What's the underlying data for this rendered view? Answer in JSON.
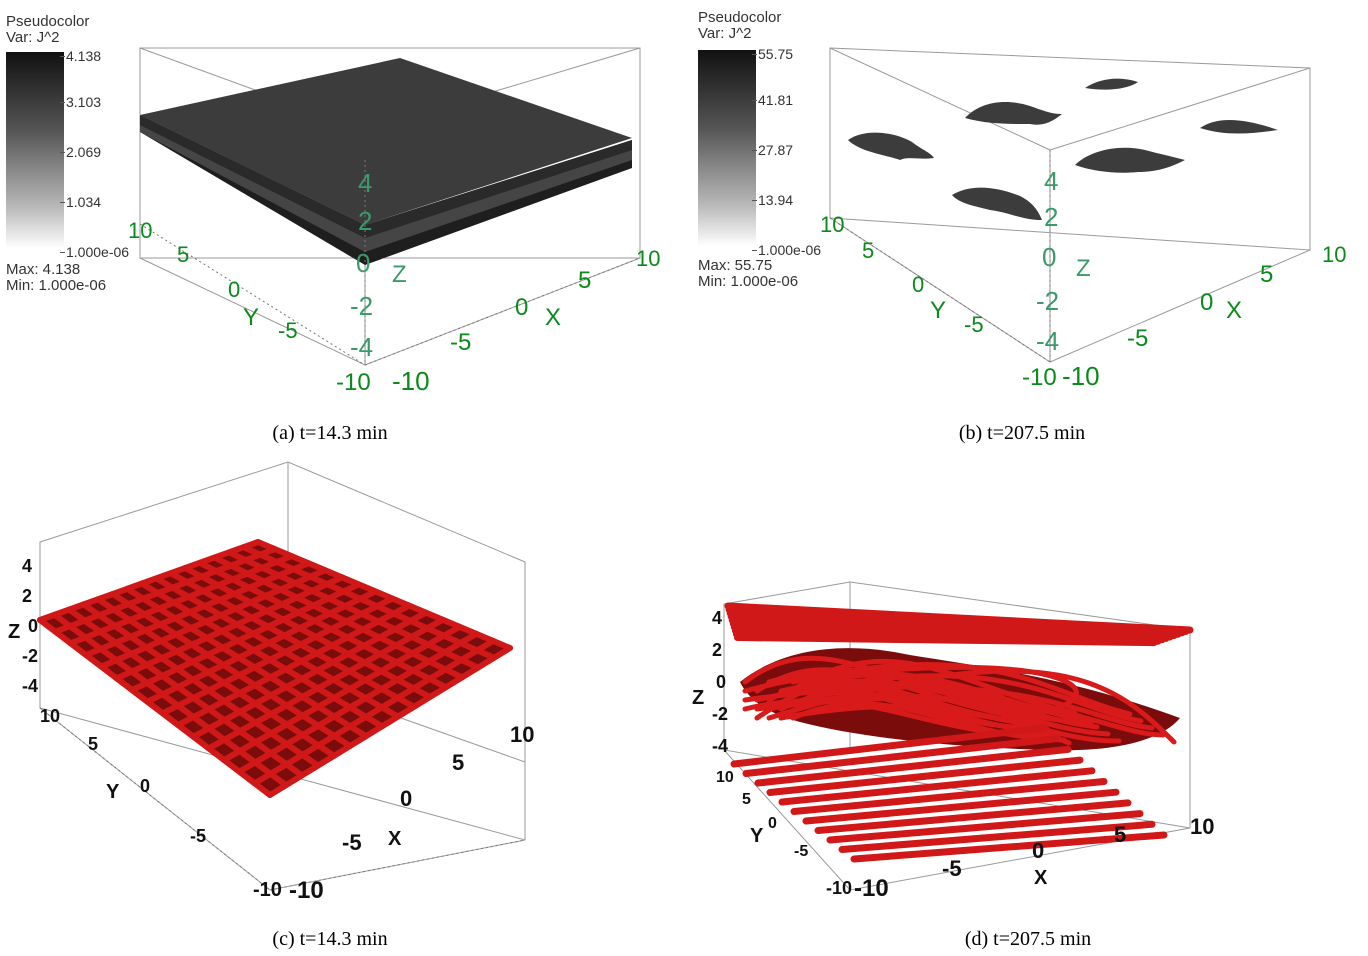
{
  "panels": [
    {
      "caption": "(a) t=14.3 min",
      "legend": {
        "title1": "Pseudocolor",
        "title2": "Var: J^2",
        "ticks": [
          "4.138",
          "3.103",
          "2.069",
          "1.034",
          "1.000e-06"
        ],
        "max_label": "Max:  4.138",
        "min_label": "Min:  1.000e-06"
      },
      "axes": {
        "x_label": "X",
        "y_label": "Y",
        "z_label": "Z",
        "x_ticks": [
          "-10",
          "-5",
          "0",
          "5",
          "10"
        ],
        "y_ticks": [
          "10",
          "5",
          "0",
          "-5",
          "-10"
        ],
        "z_ticks": [
          "4",
          "2",
          "0",
          "-2",
          "-4"
        ]
      }
    },
    {
      "caption": "(b) t=207.5 min",
      "legend": {
        "title1": "Pseudocolor",
        "title2": "Var: J^2",
        "ticks": [
          "55.75",
          "41.81",
          "27.87",
          "13.94",
          "1.000e-06"
        ],
        "max_label": "Max:  55.75",
        "min_label": "Min:  1.000e-06"
      },
      "axes": {
        "x_label": "X",
        "y_label": "Y",
        "z_label": "Z",
        "x_ticks": [
          "-10",
          "-5",
          "0",
          "5",
          "10"
        ],
        "y_ticks": [
          "10",
          "5",
          "0",
          "-5",
          "-10"
        ],
        "z_ticks": [
          "4",
          "2",
          "0",
          "-2",
          "-4"
        ]
      }
    },
    {
      "caption": "(c) t=14.3 min",
      "axes": {
        "x_label": "X",
        "y_label": "Y",
        "z_label": "Z",
        "x_ticks": [
          "-10",
          "-5",
          "0",
          "5",
          "10"
        ],
        "y_ticks": [
          "10",
          "5",
          "0",
          "-5",
          "-10"
        ],
        "z_ticks": [
          "4",
          "2",
          "0",
          "-2",
          "-4"
        ]
      }
    },
    {
      "caption": "(d) t=207.5 min",
      "axes": {
        "x_label": "X",
        "y_label": "Y",
        "z_label": "Z",
        "x_ticks": [
          "-10",
          "-5",
          "0",
          "5",
          "10"
        ],
        "y_ticks": [
          "10",
          "5",
          "0",
          "-5",
          "-10"
        ],
        "z_ticks": [
          "4",
          "2",
          "0",
          "-2",
          "-4"
        ]
      }
    }
  ],
  "colors": {
    "surface": "#3a3a3a",
    "tubes": "#c81414",
    "axis_green": "#0a8a1a",
    "axis_teal": "#3a9a6a"
  }
}
